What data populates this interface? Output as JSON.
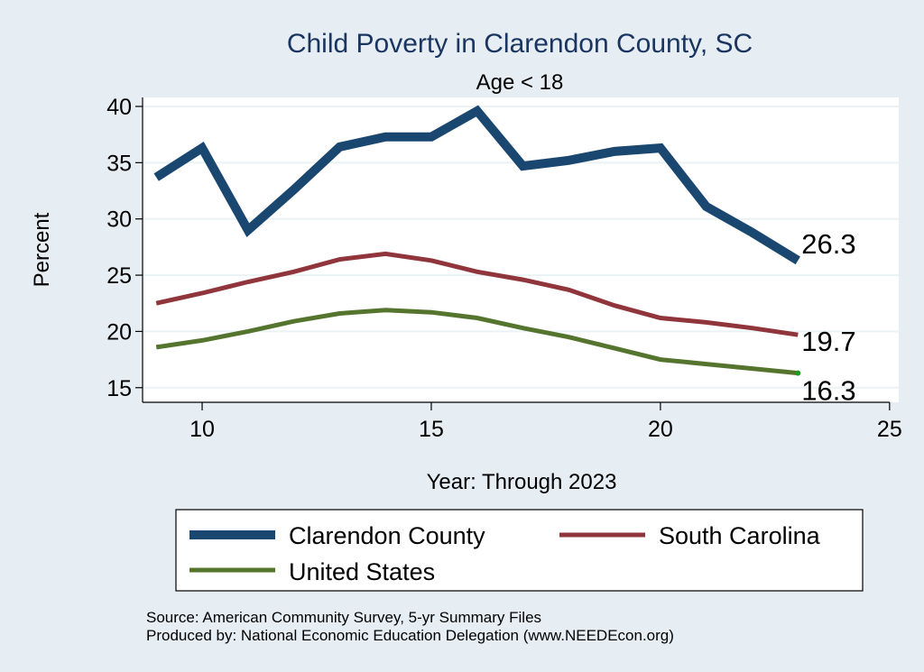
{
  "chart_data": {
    "type": "line",
    "title": "Child Poverty in Clarendon County, SC",
    "subtitle": "Age < 18",
    "xlabel": "Year: Through 2023",
    "ylabel": "Percent",
    "xlim": [
      8.7,
      25.2
    ],
    "ylim": [
      13.7,
      40.8
    ],
    "xticks": [
      10,
      15,
      20,
      25
    ],
    "yticks": [
      15,
      20,
      25,
      30,
      35,
      40
    ],
    "grid": true,
    "legend_position": "bottom",
    "x": [
      9,
      10,
      11,
      12,
      13,
      14,
      15,
      16,
      17,
      18,
      19,
      20,
      21,
      22,
      23
    ],
    "series": [
      {
        "name": "Clarendon County",
        "color": "#1a476f",
        "values": [
          33.7,
          36.3,
          29.0,
          32.6,
          36.4,
          37.3,
          37.3,
          39.6,
          34.7,
          35.2,
          36.0,
          36.3,
          31.1,
          28.8,
          26.3
        ],
        "end_label": "26.3"
      },
      {
        "name": "South Carolina",
        "color": "#90353b",
        "values": [
          22.5,
          23.4,
          24.4,
          25.3,
          26.4,
          26.9,
          26.3,
          25.3,
          24.6,
          23.7,
          22.3,
          21.2,
          20.8,
          20.3,
          19.7
        ],
        "end_label": "19.7"
      },
      {
        "name": "United States",
        "color": "#55752f",
        "values": [
          18.6,
          19.2,
          20.0,
          20.9,
          21.6,
          21.9,
          21.7,
          21.2,
          20.3,
          19.5,
          18.5,
          17.5,
          17.1,
          16.7,
          16.3
        ],
        "end_label": "16.3"
      }
    ]
  },
  "source_lines": [
    "Source: American Community Survey, 5-yr Summary Files",
    "Produced by: National Economic Education Delegation (www.NEEDEcon.org)"
  ]
}
